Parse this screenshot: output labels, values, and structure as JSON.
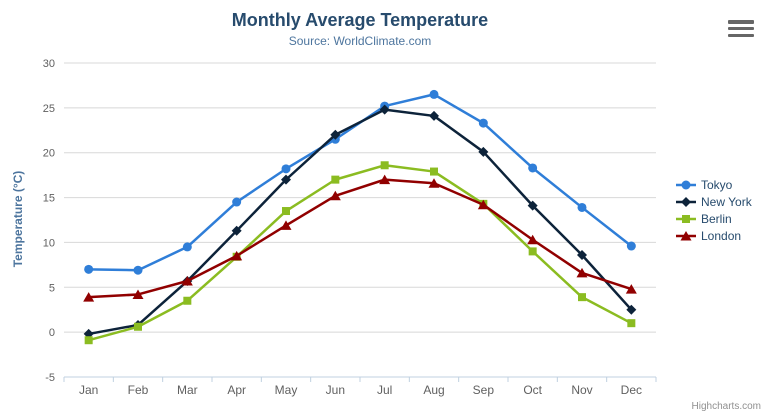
{
  "chart_data": {
    "type": "line",
    "title": "Monthly Average Temperature",
    "subtitle": "Source: WorldClimate.com",
    "xlabel": "",
    "ylabel": "Temperature (°C)",
    "ylim": [
      -5,
      30
    ],
    "y_tick_interval": 5,
    "grid": true,
    "legend_position": "right",
    "categories": [
      "Jan",
      "Feb",
      "Mar",
      "Apr",
      "May",
      "Jun",
      "Jul",
      "Aug",
      "Sep",
      "Oct",
      "Nov",
      "Dec"
    ],
    "series": [
      {
        "name": "Tokyo",
        "color": "#2f7ed8",
        "marker": "circle",
        "values": [
          7.0,
          6.9,
          9.5,
          14.5,
          18.2,
          21.5,
          25.2,
          26.5,
          23.3,
          18.3,
          13.9,
          9.6
        ]
      },
      {
        "name": "New York",
        "color": "#0d233a",
        "marker": "diamond",
        "values": [
          -0.2,
          0.8,
          5.7,
          11.3,
          17.0,
          22.0,
          24.8,
          24.1,
          20.1,
          14.1,
          8.6,
          2.5
        ]
      },
      {
        "name": "Berlin",
        "color": "#8bbc21",
        "marker": "square",
        "values": [
          -0.9,
          0.6,
          3.5,
          8.4,
          13.5,
          17.0,
          18.6,
          17.9,
          14.3,
          9.0,
          3.9,
          1.0
        ]
      },
      {
        "name": "London",
        "color": "#910000",
        "marker": "triangle",
        "values": [
          3.9,
          4.2,
          5.7,
          8.5,
          11.9,
          15.2,
          17.0,
          16.6,
          14.2,
          10.3,
          6.6,
          4.8
        ]
      }
    ]
  },
  "colors": {
    "title": "#274b6d",
    "subtitle": "#4d759e",
    "axis_title": "#4d759e",
    "axis_label": "#606060",
    "grid": "#d8d8d8",
    "axis_line": "#c0d0e0",
    "legend_text": "#274b6d",
    "credits": "#909090",
    "export_icon": "#666666"
  },
  "export_menu": {
    "icon": "hamburger-icon"
  },
  "credits": {
    "label": "Highcharts.com"
  }
}
